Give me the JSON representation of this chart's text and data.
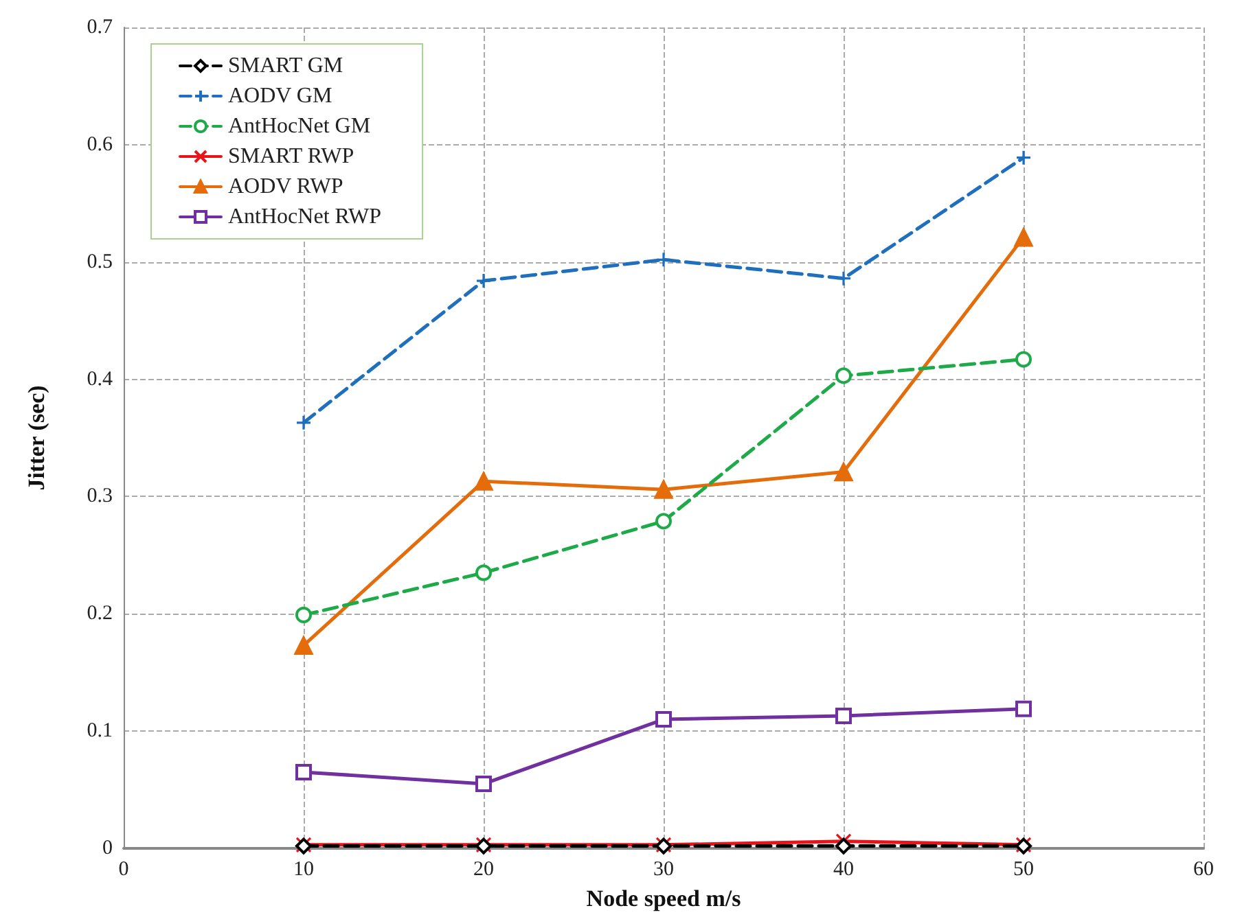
{
  "chart_data": {
    "type": "line",
    "xlabel": "Node speed m/s",
    "ylabel": "Jitter (sec)",
    "x": [
      10,
      20,
      30,
      40,
      50
    ],
    "xlim": [
      0,
      60
    ],
    "xticks": [
      0,
      10,
      20,
      30,
      40,
      50,
      60
    ],
    "ylim": [
      0,
      0.7
    ],
    "yticks": [
      0,
      0.1,
      0.2,
      0.3,
      0.4,
      0.5,
      0.6,
      0.7
    ],
    "grid": true,
    "legend": "top left",
    "series": [
      {
        "name": "SMART GM",
        "color": "#000000",
        "marker": "diamond",
        "line_style": "dashed",
        "values": [
          0.002,
          0.002,
          0.002,
          0.002,
          0.002
        ]
      },
      {
        "name": "AODV GM",
        "color": "#1f6fbf",
        "marker": "cross",
        "line_style": "dashed",
        "values": [
          0.363,
          0.484,
          0.502,
          0.486,
          0.589
        ]
      },
      {
        "name": "AntHocNet GM",
        "color": "#1faa4a",
        "marker": "circle",
        "line_style": "dashed",
        "values": [
          0.199,
          0.235,
          0.279,
          0.403,
          0.417
        ]
      },
      {
        "name": "SMART RWP",
        "color": "#e8141c",
        "marker": "cross",
        "line_style": "solid",
        "values": [
          0.003,
          0.003,
          0.003,
          0.006,
          0.003
        ]
      },
      {
        "name": "AODV RWP",
        "color": "#e46c0a",
        "marker": "triangle",
        "line_style": "solid",
        "values": [
          0.173,
          0.313,
          0.306,
          0.321,
          0.521
        ]
      },
      {
        "name": "AntHocNet RWP",
        "color": "#7030a0",
        "marker": "square",
        "line_style": "solid",
        "values": [
          0.065,
          0.055,
          0.11,
          0.113,
          0.119
        ]
      }
    ]
  }
}
